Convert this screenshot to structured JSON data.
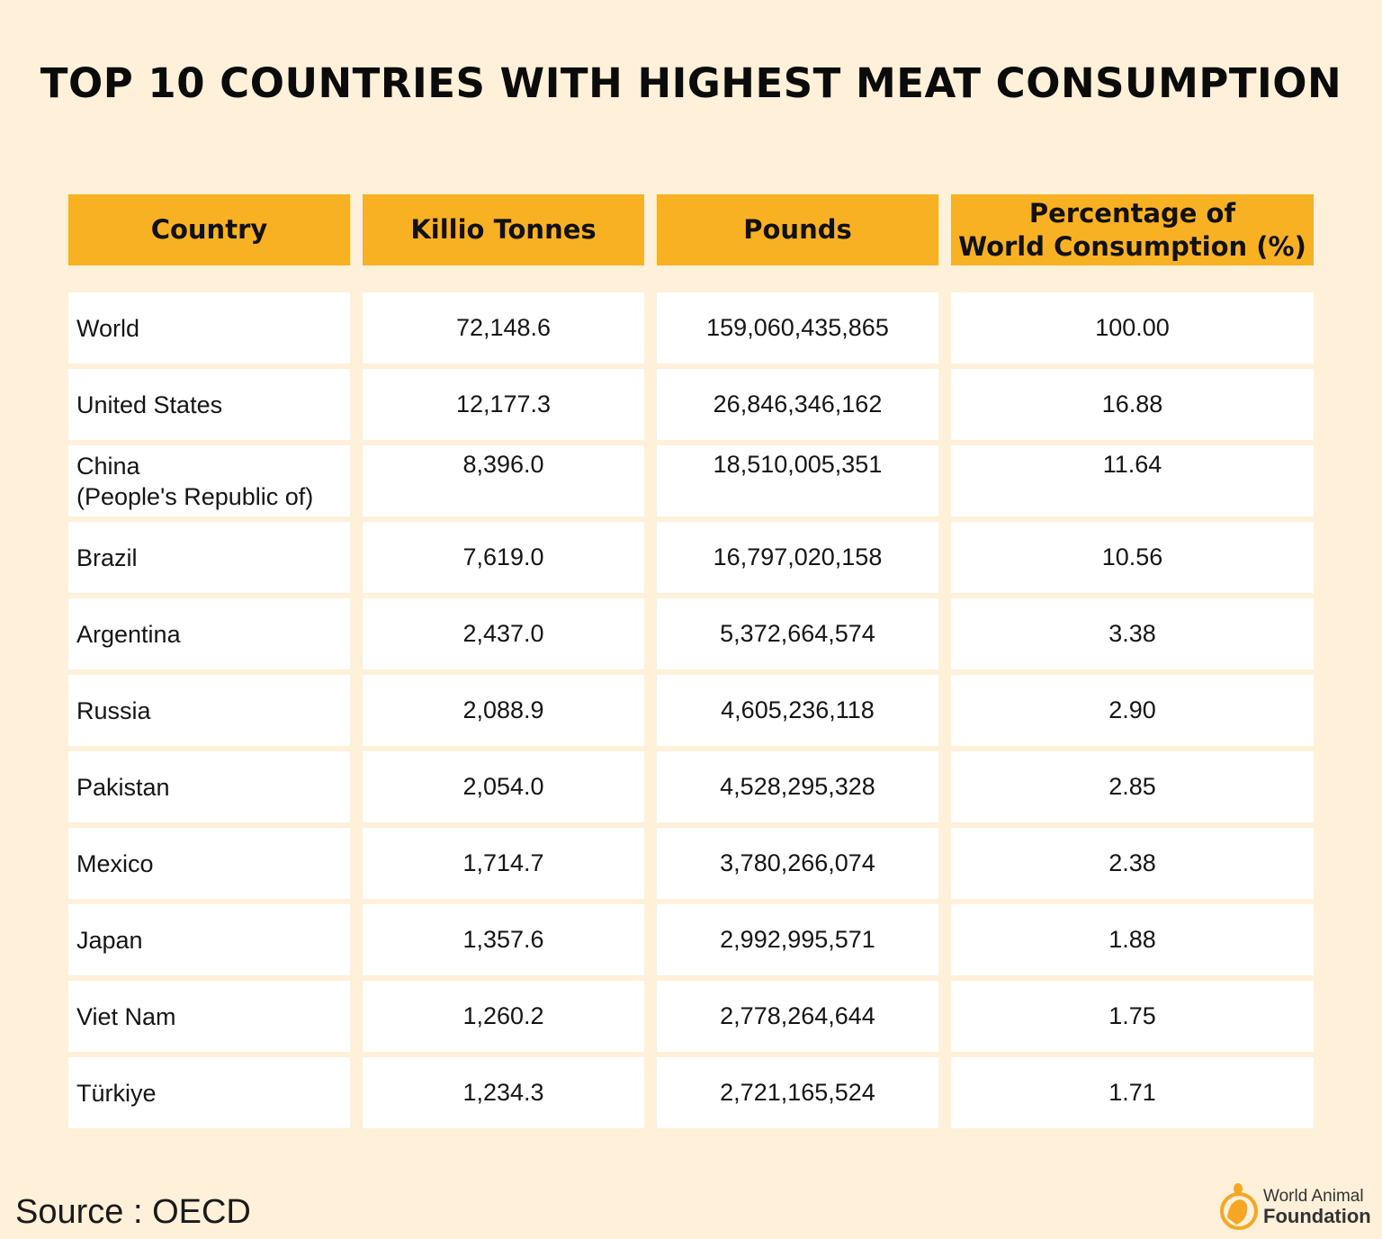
{
  "chart_data": {
    "type": "table",
    "title": "TOP 10 COUNTRIES WITH HIGHEST MEAT CONSUMPTION",
    "columns": [
      "Country",
      "Killio Tonnes",
      "Pounds",
      "Percentage of World Consumption (%)"
    ],
    "rows": [
      [
        "World",
        "72,148.6",
        "159,060,435,865",
        "100.00"
      ],
      [
        "United States",
        "12,177.3",
        "26,846,346,162",
        "16.88"
      ],
      [
        "China\n(People's Republic of)",
        "8,396.0",
        "18,510,005,351",
        "11.64"
      ],
      [
        "Brazil",
        "7,619.0",
        "16,797,020,158",
        "10.56"
      ],
      [
        "Argentina",
        "2,437.0",
        "5,372,664,574",
        "3.38"
      ],
      [
        "Russia",
        "2,088.9",
        "4,605,236,118",
        "2.90"
      ],
      [
        "Pakistan",
        "2,054.0",
        "4,528,295,328",
        "2.85"
      ],
      [
        "Mexico",
        "1,714.7",
        "3,780,266,074",
        "2.38"
      ],
      [
        "Japan",
        "1,357.6",
        "2,992,995,571",
        "1.88"
      ],
      [
        "Viet Nam",
        "1,260.2",
        "2,778,264,644",
        "1.75"
      ],
      [
        "Türkiye",
        "1,234.3",
        "2,721,165,524",
        "1.71"
      ]
    ]
  },
  "header_labels": [
    "Country",
    "Killio Tonnes",
    "Pounds",
    "Percentage of\nWorld Consumption (%)"
  ],
  "source": "Source : OECD",
  "logo": {
    "line1": "World Animal",
    "line2": "Foundation",
    "icon": "animal-circle-logo-icon"
  },
  "colors": {
    "background": "#FEF0D9",
    "header": "#F8B122",
    "cell": "#FFFFFF",
    "logo": "#F5A623"
  }
}
